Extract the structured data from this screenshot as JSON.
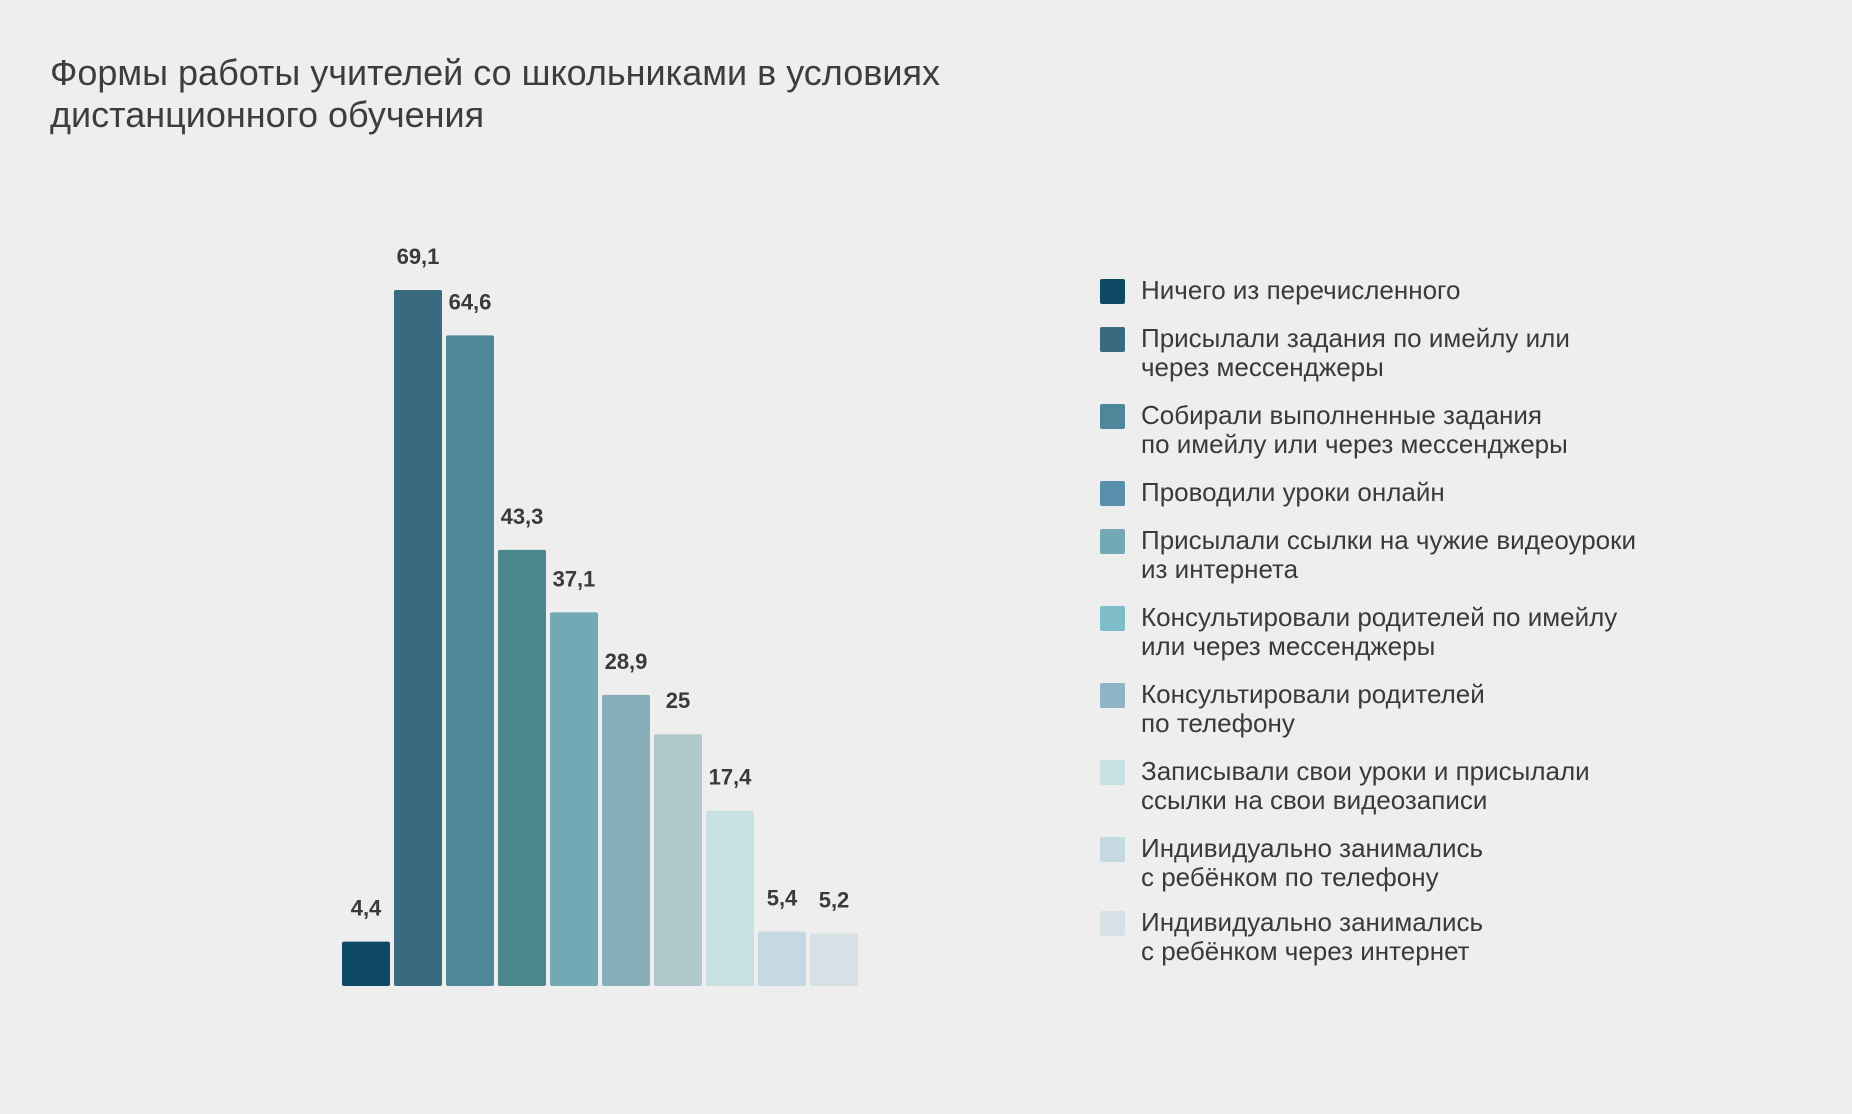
{
  "chart_data": {
    "type": "bar",
    "title": "Формы работы учителей со школьниками в условиях\nдистанционного обучения",
    "xlabel": "",
    "ylabel": "",
    "ylim": [
      0,
      69.1
    ],
    "grid": false,
    "legend_position": "right",
    "categories": [
      "Ничего из перечисленного",
      "Присылали задания по имейлу или\nчерез мессенджеры",
      "Собирали выполненные задания\nпо имейлу или через мессенджеры",
      "Проводили уроки онлайн",
      "Присылали ссылки на чужие видеоуроки\nиз интернета",
      "Консультировали родителей по имейлу\nили через мессенджеры",
      "Консультировали родителей\nпо телефону",
      "Записывали свои уроки и присылали\nссылки на свои видеозаписи",
      "Индивидуально занимались\nс ребёнком по телефону",
      "Индивидуально занимались\nс ребёнком через интернет"
    ],
    "values": [
      4.4,
      69.1,
      64.6,
      43.3,
      37.1,
      28.9,
      25,
      17.4,
      5.4,
      5.2
    ],
    "value_labels": [
      "4,4",
      "69,1",
      "64,6",
      "43,3",
      "37,1",
      "28,9",
      "25",
      "17,4",
      "5,4",
      "5,2"
    ],
    "bar_colors": [
      "#0e4a66",
      "#3a6a80",
      "#4e8799",
      "#4a878c",
      "#72a9b4",
      "#88afb9",
      "#afc8cc",
      "#c9e0e3",
      "#c5d9e3",
      "#d7e0e4"
    ],
    "legend_colors": [
      "#0e4a66",
      "#3a6a80",
      "#4e8799",
      "#5a8fab",
      "#72a9b4",
      "#7dbcc8",
      "#8eb4c5",
      "#c9e0e3",
      "#c5d9e3",
      "#d7e0e4"
    ]
  }
}
